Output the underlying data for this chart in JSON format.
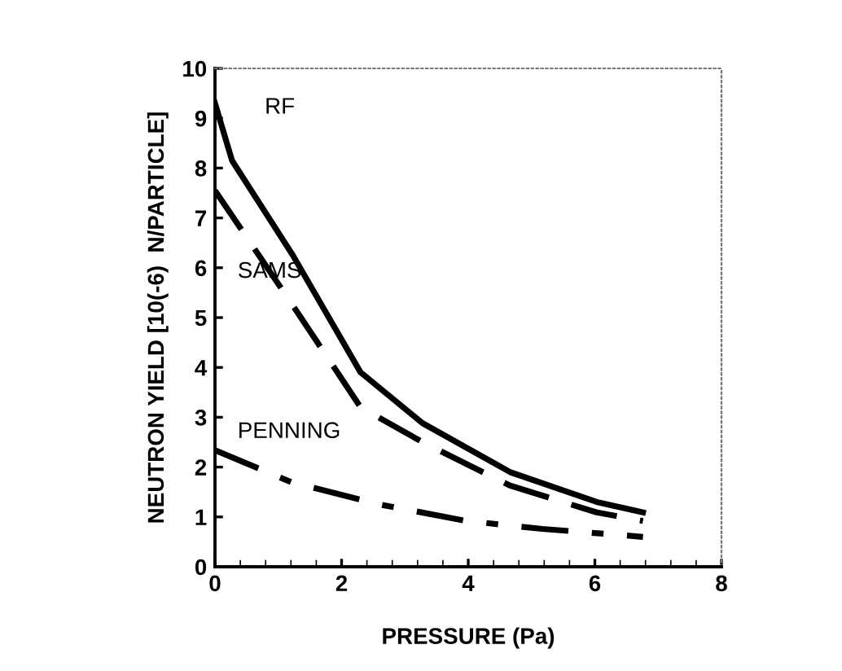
{
  "chart_data": {
    "type": "line",
    "xlabel": "PRESSURE (Pa)",
    "ylabel": "NEUTRON YIELD [10(-6)  N/PARTICLE]",
    "xlim": [
      0,
      8
    ],
    "ylim": [
      0,
      10
    ],
    "xticks": [
      0,
      2,
      4,
      6,
      8
    ],
    "yticks": [
      0,
      1,
      2,
      3,
      4,
      5,
      6,
      7,
      8,
      9,
      10
    ],
    "grid": false,
    "legend": false,
    "series": [
      {
        "name": "RF",
        "color": "#000000",
        "line_style": "solid",
        "x": [
          0,
          0.27,
          1.23,
          2.3,
          3.28,
          4.66,
          6.03,
          6.76
        ],
        "values": [
          9.3,
          8.15,
          6.25,
          3.9,
          2.88,
          1.9,
          1.3,
          1.09
        ]
      },
      {
        "name": "SAMS",
        "color": "#000000",
        "line_style": "dashed",
        "x": [
          0,
          1.2,
          2.3,
          3.28,
          4.66,
          6.03,
          6.76
        ],
        "values": [
          7.55,
          5.3,
          3.2,
          2.5,
          1.63,
          1.09,
          0.92
        ]
      },
      {
        "name": "PENNING",
        "color": "#000000",
        "line_style": "dashdot",
        "x": [
          0,
          1.2,
          2.6,
          3.97,
          5.17,
          6.76
        ],
        "values": [
          2.34,
          1.7,
          1.25,
          0.92,
          0.76,
          0.6
        ]
      }
    ]
  }
}
